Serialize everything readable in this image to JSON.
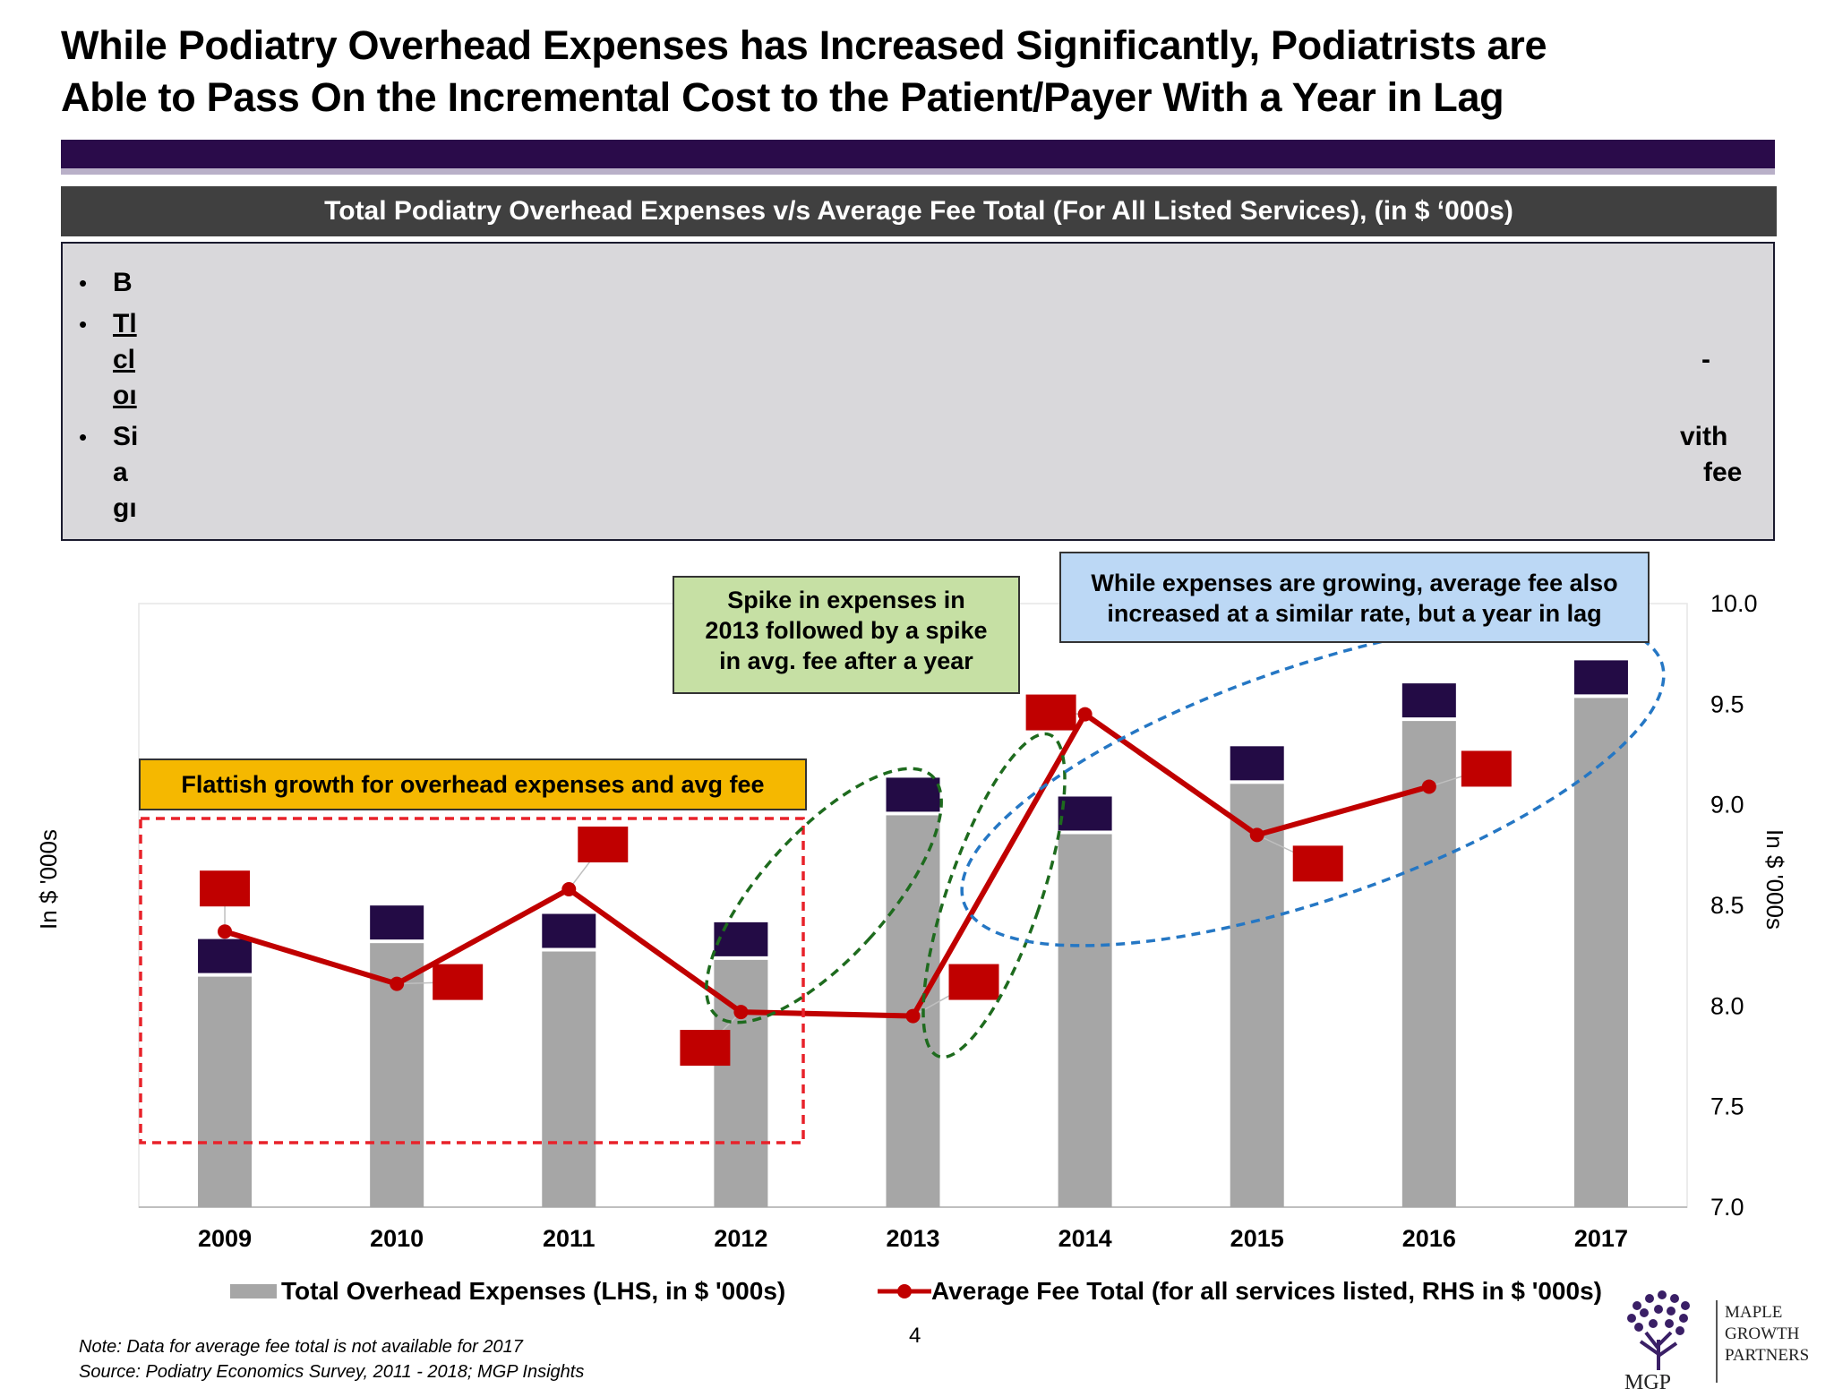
{
  "title_lines": [
    "While Podiatry Overhead Expenses has Increased Significantly, Podiatrists are",
    "Able to Pass On the Incremental Cost to the Patient/Payer With a Year in Lag"
  ],
  "chart_header": "Total Podiatry Overhead Expenses v/s Average Fee Total (For All Listed Services), (in $ ‘000s)",
  "bullets": {
    "b1": "B",
    "b2_l1": "Tl",
    "b2_l2": "cl",
    "b2_l2_right": "-",
    "b2_l3": "oı",
    "b3_l1": "Si",
    "b3_l1_right": "vith",
    "b3_l2": "a",
    "b3_l2_right": "fee",
    "b3_l3": "gı"
  },
  "callouts": {
    "flat": "Flattish growth for overhead expenses and avg fee",
    "spike": [
      "Spike in expenses in",
      "2013 followed by a spike",
      "in avg. fee after a year"
    ],
    "grow": [
      "While expenses are growing, average fee also",
      "increased at a similar rate, but a year in lag"
    ]
  },
  "chart_data": {
    "type": "bar",
    "categories": [
      "2009",
      "2010",
      "2011",
      "2012",
      "2013",
      "2014",
      "2015",
      "2016",
      "2017"
    ],
    "series": [
      {
        "name": "Total Overhead Expenses (LHS, in $ '000s)",
        "type": "bar",
        "axis": "left",
        "values": [
          110,
          126,
          122,
          118,
          187,
          178,
          202,
          232,
          243
        ]
      },
      {
        "name": "Average Fee Total (for all services listed, RHS in $ '000s)",
        "type": "line",
        "axis": "right",
        "values": [
          8.37,
          8.11,
          8.58,
          7.97,
          7.95,
          9.45,
          8.85,
          9.09,
          null
        ]
      }
    ],
    "ylabel_left": "In $ '000s",
    "ylabel_right": "In $ '000s",
    "y2_ticks": [
      "10.0",
      "9.5",
      "9.0",
      "8.5",
      "8.0",
      "7.5",
      "7.0"
    ],
    "y2lim": [
      7.0,
      10.0
    ],
    "left_axis_tick_labels_shown": false,
    "legend_position": "bottom",
    "colors": {
      "bar": "#a6a6a6",
      "line": "#c00000",
      "bar_label_box": "#230b45",
      "line_label_box": "#c00000"
    }
  },
  "legend": {
    "bar": "Total Overhead Expenses (LHS, in $ '000s)",
    "line": "Average Fee Total (for all services listed, RHS in $ '000s)"
  },
  "note_lines": [
    "Note: Data for average fee total is not available for 2017",
    "Source: Podiatry Economics Survey, 2011 - 2018; MGP Insights"
  ],
  "page_number": "4",
  "logo": {
    "mark": "MGP",
    "lines": [
      "MAPLE",
      "GROWTH",
      "PARTNERS"
    ]
  }
}
